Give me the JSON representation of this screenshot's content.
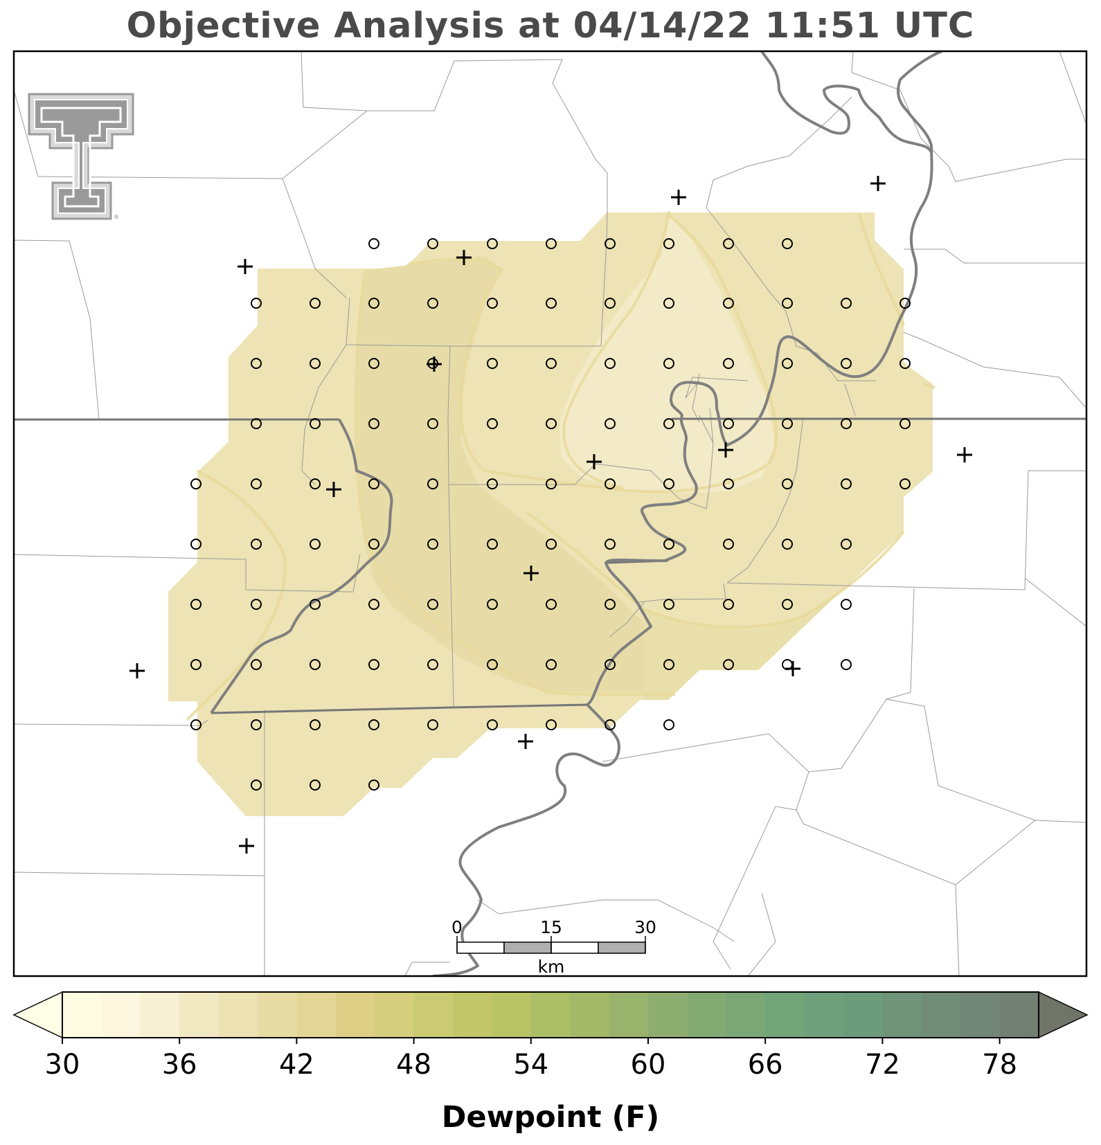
{
  "title": "Objective Analysis at 04/14/22 11:51 UTC",
  "logo": {
    "icon": "texas-tech-double-t-logo",
    "color": "#9a9a9a",
    "mark": "®"
  },
  "map": {
    "field": "Dewpoint (F)",
    "analysis_fill_colors": [
      "#f3ead0",
      "#eee4b9",
      "#e9e0ad"
    ],
    "contour_color": "#e8d9a0",
    "state_border_color": "#777777",
    "county_line_color": "#999999",
    "river_color": "#808080",
    "station_marker": "plus",
    "grid_marker": "circle"
  },
  "scale_bar": {
    "ticks": [
      "0",
      "15",
      "30"
    ],
    "unit": "km"
  },
  "colorbar": {
    "label": "Dewpoint (F)",
    "tick_labels": [
      "30",
      "36",
      "42",
      "48",
      "54",
      "60",
      "66",
      "72",
      "78"
    ],
    "levels": [
      30,
      32,
      34,
      36,
      38,
      40,
      42,
      44,
      46,
      48,
      50,
      52,
      54,
      56,
      58,
      60,
      62,
      64,
      66,
      68,
      70,
      72,
      74,
      76,
      78,
      80
    ],
    "colors": [
      "#fefbe3",
      "#fcf7de",
      "#f8f0d3",
      "#f2e8c2",
      "#ede2b3",
      "#e8dca5",
      "#e3d596",
      "#ddd086",
      "#d5ce7c",
      "#cbcb74",
      "#c1c66b",
      "#b8c466",
      "#acbf66",
      "#a3b968",
      "#98b36c",
      "#8eae71",
      "#84aa74",
      "#7ba777",
      "#73a57a",
      "#6fa17d",
      "#6c9c7c",
      "#6f9479",
      "#718d78",
      "#728677",
      "#727f73"
    ],
    "extend": "both",
    "under_color": "#fefde6",
    "over_color": "#707568"
  }
}
